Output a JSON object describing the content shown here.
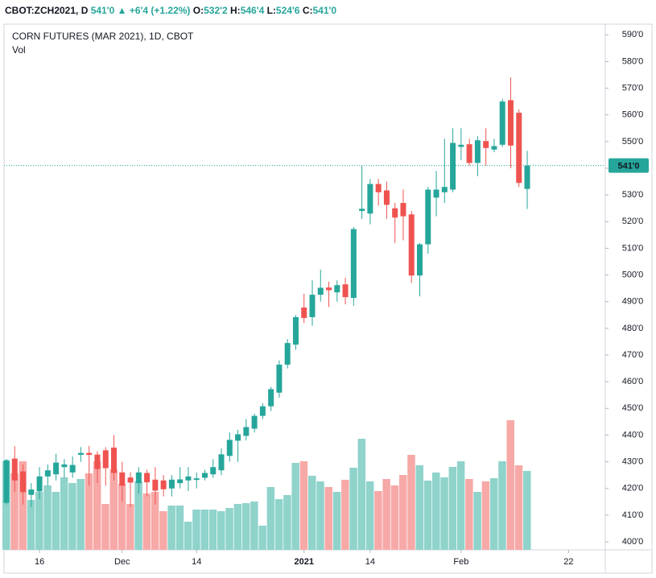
{
  "header": {
    "symbol": "CBOT:ZCH2021, D",
    "last": "541'0",
    "arrow": "▲",
    "change": "+6'4 (+1.22%)",
    "o_label": "O:",
    "o": "532'2",
    "h_label": "H:",
    "h": "546'4",
    "l_label": "L:",
    "l": "524'6",
    "c_label": "C:",
    "c": "541'0"
  },
  "chart_data": {
    "type": "candlestick",
    "title": "CORN FUTURES (MAR 2021), 1D, CBOT",
    "volume_label": "Vol",
    "categories": [
      null,
      null,
      null,
      null,
      "16",
      null,
      null,
      null,
      null,
      null,
      null,
      null,
      null,
      null,
      "Dec",
      null,
      null,
      null,
      null,
      null,
      null,
      null,
      null,
      "14",
      null,
      null,
      null,
      null,
      null,
      null,
      null,
      null,
      null,
      null,
      null,
      null,
      "2021",
      null,
      null,
      null,
      null,
      null,
      null,
      null,
      "14",
      null,
      null,
      null,
      null,
      null,
      null,
      null,
      null,
      null,
      null,
      "Feb",
      null,
      null,
      null,
      null,
      null,
      null,
      null,
      null,
      null,
      null,
      null,
      null,
      "22"
    ],
    "open": [
      414.6,
      431.2,
      426.4,
      417.6,
      418.9,
      424.5,
      425.3,
      428,
      426,
      432.6,
      433.3,
      432.7,
      434.3,
      435.3,
      426,
      424.1,
      422,
      425.8,
      423.3,
      423,
      420,
      422,
      423,
      423.2,
      424,
      425.3,
      426.8,
      432.2,
      437.9,
      439.7,
      442.4,
      447.2,
      450.8,
      455.9,
      466.4,
      473.9,
      487.8,
      484.2,
      492.6,
      495.3,
      493.5,
      496.5,
      491.4,
      524,
      523,
      534.1,
      531.7,
      525,
      527,
      522.7,
      499.8,
      511.5,
      529,
      531,
      532,
      548,
      549,
      542,
      550.2,
      547,
      548.8,
      565.5,
      560.8,
      532.25,
      null,
      null,
      null,
      null,
      null
    ],
    "high": [
      431,
      435.8,
      429,
      422,
      428,
      429,
      433,
      431,
      432,
      435.5,
      436,
      434,
      435.5,
      440,
      430,
      426,
      428,
      427,
      428,
      425,
      425,
      428,
      428,
      426,
      427,
      431,
      435,
      441,
      442,
      446,
      448,
      452,
      458,
      468,
      476,
      485,
      493,
      498,
      502,
      497.5,
      498,
      499,
      518,
      541,
      536,
      536,
      535,
      527,
      532,
      524,
      512,
      533,
      539,
      551,
      555,
      555,
      551,
      552,
      555,
      551,
      566,
      574,
      562,
      546.5,
      null,
      null,
      null,
      null,
      null
    ],
    "low": [
      414,
      418.6,
      414,
      413,
      416,
      421,
      423,
      424,
      424,
      430,
      421,
      422,
      421,
      423,
      415,
      413,
      418,
      417,
      414,
      417,
      417,
      420,
      419,
      420,
      423,
      424,
      425,
      430,
      430,
      438,
      441,
      446,
      449,
      454,
      465,
      472,
      482,
      481,
      490,
      488,
      490,
      489,
      488.5,
      521,
      519,
      526,
      521,
      512,
      513,
      497,
      492,
      508,
      522,
      527,
      531,
      543,
      541,
      537,
      541,
      546,
      548,
      540,
      533,
      524.75,
      null,
      null,
      null,
      null,
      null
    ],
    "close": [
      430.6,
      423,
      418.6,
      419.6,
      424.5,
      426.8,
      429.7,
      429,
      428.8,
      433.3,
      432.6,
      427.3,
      427.6,
      425.8,
      421,
      422.2,
      426,
      422.3,
      419.2,
      419.7,
      423.3,
      423.4,
      424.5,
      423.8,
      425.8,
      428,
      432.8,
      438.2,
      440.3,
      443,
      447.2,
      450.8,
      457.2,
      466.4,
      474.5,
      484.2,
      483.9,
      492.6,
      495.2,
      494.3,
      496.2,
      491.7,
      517.2,
      524.8,
      534.1,
      531,
      526.3,
      521.5,
      522,
      499.8,
      511.5,
      532,
      532,
      533,
      549.5,
      548.8,
      542,
      550.5,
      547.6,
      548.3,
      565,
      548.5,
      534.5,
      541,
      null,
      null,
      null,
      null,
      null
    ],
    "volume": [
      110,
      95,
      110,
      62,
      72,
      80,
      72,
      90,
      83,
      88,
      95,
      110,
      57,
      100,
      82,
      57,
      85,
      70,
      72,
      48,
      55,
      55,
      35,
      50,
      50,
      50,
      48,
      52,
      57,
      58,
      60,
      30,
      78,
      63,
      68,
      108,
      110,
      92,
      85,
      78,
      72,
      87,
      102,
      138,
      85,
      73,
      88,
      80,
      93,
      118,
      105,
      86,
      96,
      90,
      103,
      110,
      88,
      72,
      85,
      89,
      110,
      161,
      105,
      98,
      null,
      null,
      null,
      null,
      null
    ],
    "up_color": "#26a69a",
    "down_color": "#ef5350",
    "up_volume_color": "#8fd3cb",
    "down_volume_color": "#f7a9a7",
    "ylim": [
      397,
      594
    ],
    "yticks": [
      {
        "value": 400,
        "label": "400'0"
      },
      {
        "value": 410,
        "label": "410'0"
      },
      {
        "value": 420,
        "label": "420'0"
      },
      {
        "value": 430,
        "label": "430'0"
      },
      {
        "value": 440,
        "label": "440'0"
      },
      {
        "value": 450,
        "label": "450'0"
      },
      {
        "value": 460,
        "label": "460'0"
      },
      {
        "value": 470,
        "label": "470'0"
      },
      {
        "value": 480,
        "label": "480'0"
      },
      {
        "value": 490,
        "label": "490'0"
      },
      {
        "value": 500,
        "label": "500'0"
      },
      {
        "value": 510,
        "label": "510'0"
      },
      {
        "value": 520,
        "label": "520'0"
      },
      {
        "value": 530,
        "label": "530'0"
      },
      {
        "value": 540,
        "label": "540'0"
      },
      {
        "value": 550,
        "label": "550'0"
      },
      {
        "value": 560,
        "label": "560'0"
      },
      {
        "value": 570,
        "label": "570'0"
      },
      {
        "value": 580,
        "label": "580'0"
      },
      {
        "value": 590,
        "label": "590'0"
      }
    ],
    "last_price": {
      "value": 541,
      "label": "541'0"
    },
    "grid": false
  }
}
